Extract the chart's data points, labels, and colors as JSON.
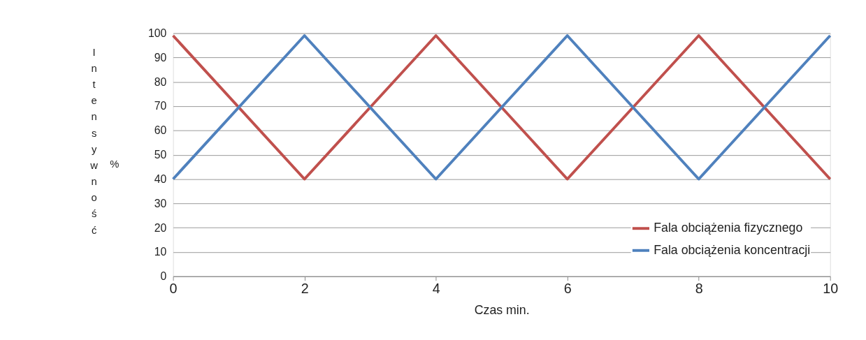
{
  "chart_data": {
    "type": "line",
    "xlabel": "Czas min.",
    "ylabel": "Intensywność",
    "annotations": [
      "%"
    ],
    "x": [
      0,
      2,
      4,
      6,
      8,
      10
    ],
    "series": [
      {
        "name": "Fala obciążenia fizycznego",
        "color": "#c0504d",
        "values": [
          99,
          40,
          99,
          40,
          99,
          40
        ]
      },
      {
        "name": "Fala obciążenia koncentracji",
        "color": "#4f81bd",
        "values": [
          40,
          99,
          40,
          99,
          40,
          99
        ]
      }
    ],
    "xlim": [
      0,
      10
    ],
    "xticks": [
      0,
      2,
      4,
      6,
      8,
      10
    ],
    "ylim": [
      0,
      100
    ],
    "yticks": [
      0,
      10,
      20,
      30,
      40,
      50,
      60,
      70,
      80,
      90,
      100
    ],
    "grid": "y",
    "legend": "bottom right",
    "marker": "none",
    "line_style": "solid"
  }
}
